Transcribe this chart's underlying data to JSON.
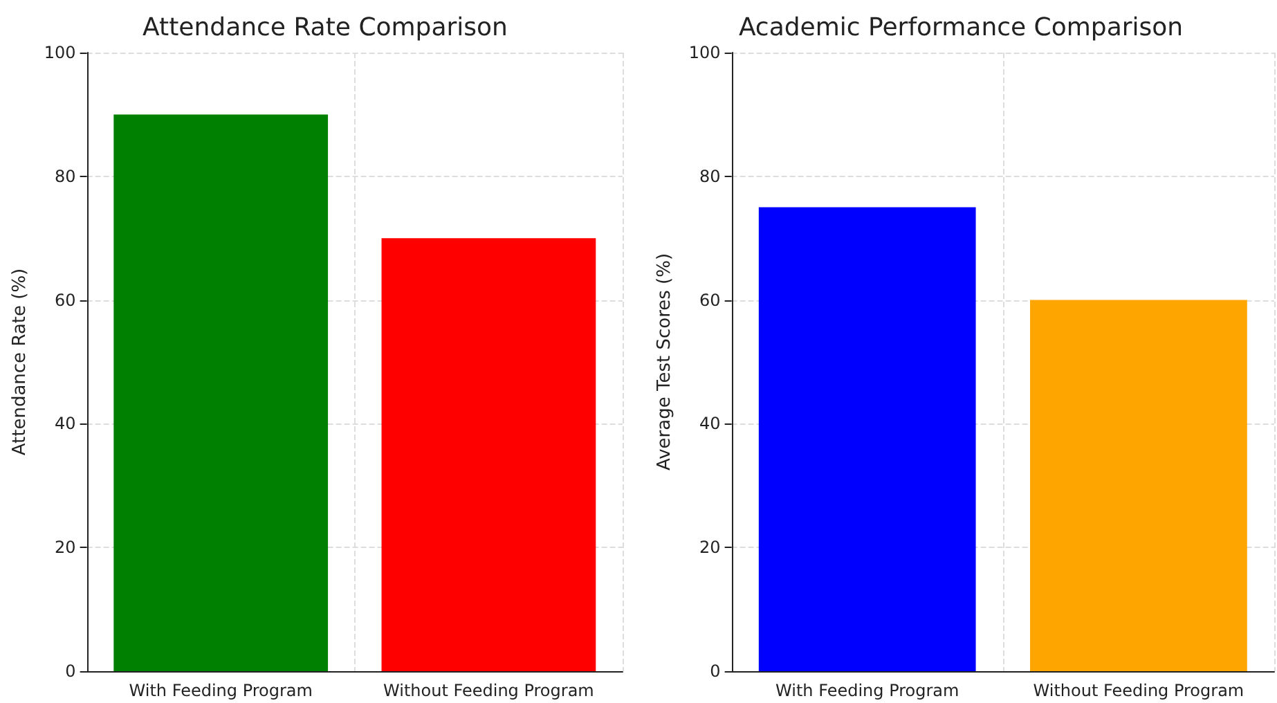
{
  "chart_data": [
    {
      "type": "bar",
      "title": "Attendance Rate Comparison",
      "ylabel": "Attendance Rate (%)",
      "categories": [
        "With Feeding Program",
        "Without Feeding Program"
      ],
      "values": [
        90,
        70
      ],
      "colors": [
        "#008000",
        "#ff0000"
      ],
      "ylim": [
        0,
        100
      ],
      "yticks": [
        0,
        20,
        40,
        60,
        80,
        100
      ],
      "grid": true
    },
    {
      "type": "bar",
      "title": "Academic Performance Comparison",
      "ylabel": "Average Test Scores (%)",
      "categories": [
        "With Feeding Program",
        "Without Feeding Program"
      ],
      "values": [
        75,
        60
      ],
      "colors": [
        "#0000ff",
        "#ffa500"
      ],
      "ylim": [
        0,
        100
      ],
      "yticks": [
        0,
        20,
        40,
        60,
        80,
        100
      ],
      "grid": true
    }
  ]
}
